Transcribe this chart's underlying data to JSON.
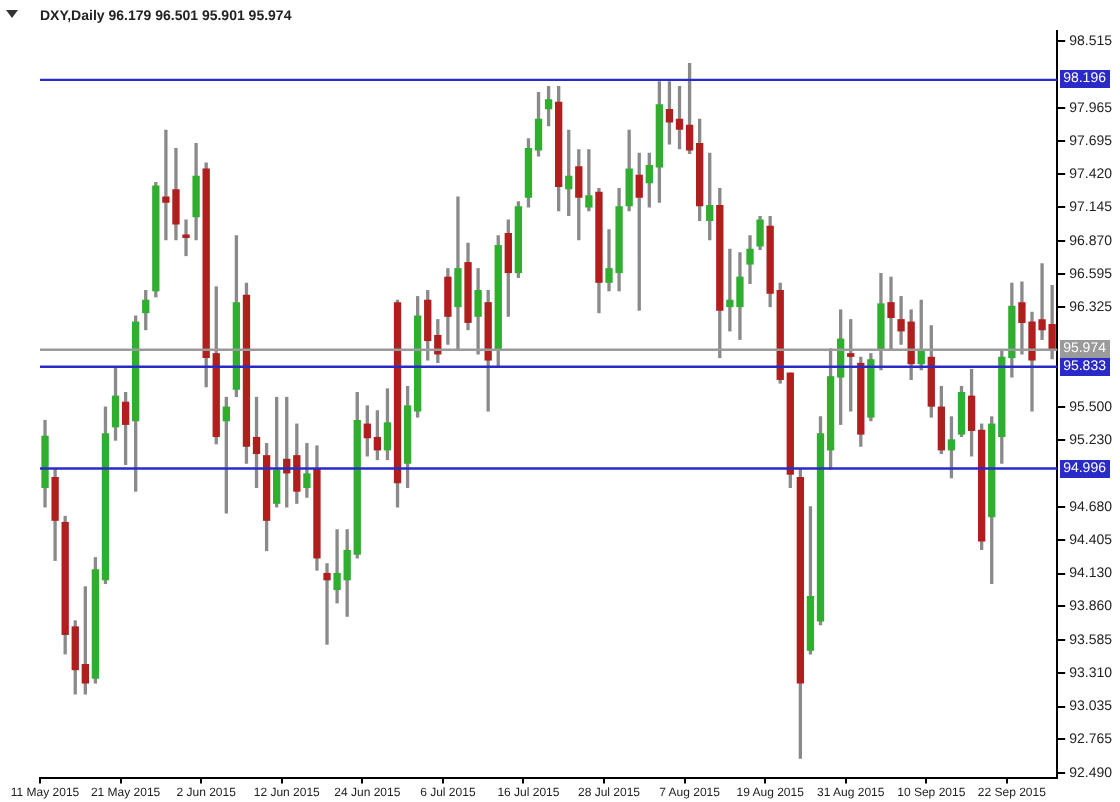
{
  "chart_data": {
    "type": "candlestick",
    "title": "DXY,Daily 96.179 96.501 95.901 95.974",
    "categories": [
      "11 May 2015",
      null,
      null,
      null,
      null,
      null,
      null,
      null,
      "21 May 2015",
      null,
      null,
      null,
      null,
      null,
      null,
      null,
      "2 Jun 2015",
      null,
      null,
      null,
      null,
      null,
      null,
      null,
      "12 Jun 2015",
      null,
      null,
      null,
      null,
      null,
      null,
      null,
      "24 Jun 2015",
      null,
      null,
      null,
      null,
      null,
      null,
      null,
      "6 Jul 2015",
      null,
      null,
      null,
      null,
      null,
      null,
      null,
      "16 Jul 2015",
      null,
      null,
      null,
      null,
      null,
      null,
      null,
      "28 Jul 2015",
      null,
      null,
      null,
      null,
      null,
      null,
      null,
      "7 Aug 2015",
      null,
      null,
      null,
      null,
      null,
      null,
      null,
      "19 Aug 2015",
      null,
      null,
      null,
      null,
      null,
      null,
      null,
      "31 Aug 2015",
      null,
      null,
      null,
      null,
      null,
      null,
      null,
      "10 Sep 2015",
      null,
      null,
      null,
      null,
      null,
      null,
      null,
      "22 Sep 2015",
      null,
      null,
      null,
      null
    ],
    "ohlc": [
      [
        94.84,
        95.39,
        94.68,
        95.26
      ],
      [
        94.92,
        94.99,
        94.24,
        94.57
      ],
      [
        94.55,
        94.6,
        93.47,
        93.63
      ],
      [
        93.69,
        93.74,
        93.14,
        93.34
      ],
      [
        93.38,
        94.02,
        93.14,
        93.23
      ],
      [
        93.27,
        94.26,
        93.23,
        94.16
      ],
      [
        94.08,
        95.5,
        94.05,
        95.28
      ],
      [
        95.34,
        95.83,
        95.23,
        95.59
      ],
      [
        95.54,
        95.62,
        95.03,
        95.36
      ],
      [
        95.39,
        96.25,
        94.81,
        96.2
      ],
      [
        96.28,
        96.46,
        96.14,
        96.38
      ],
      [
        96.46,
        97.35,
        96.41,
        97.32
      ],
      [
        97.23,
        97.78,
        96.88,
        97.19
      ],
      [
        97.29,
        97.63,
        96.88,
        97.01
      ],
      [
        96.91,
        97.04,
        96.75,
        96.9
      ],
      [
        97.07,
        97.67,
        96.88,
        97.4
      ],
      [
        97.46,
        97.51,
        95.67,
        95.91
      ],
      [
        95.94,
        96.49,
        95.2,
        95.26
      ],
      [
        95.39,
        95.58,
        94.63,
        95.5
      ],
      [
        95.65,
        96.91,
        95.59,
        96.36
      ],
      [
        96.42,
        96.52,
        95.04,
        95.18
      ],
      [
        95.25,
        95.58,
        94.84,
        95.12
      ],
      [
        95.1,
        95.2,
        94.32,
        94.57
      ],
      [
        94.71,
        95.58,
        94.68,
        94.98
      ],
      [
        95.07,
        95.58,
        94.68,
        94.96
      ],
      [
        95.1,
        95.36,
        94.71,
        94.81
      ],
      [
        94.84,
        95.2,
        94.76,
        94.95
      ],
      [
        94.99,
        95.18,
        94.16,
        94.26
      ],
      [
        94.13,
        94.21,
        93.55,
        94.08
      ],
      [
        94.0,
        94.49,
        93.89,
        94.13
      ],
      [
        94.08,
        94.49,
        93.78,
        94.32
      ],
      [
        94.29,
        95.62,
        94.26,
        95.39
      ],
      [
        95.36,
        95.51,
        95.1,
        95.25
      ],
      [
        95.25,
        95.47,
        95.07,
        95.15
      ],
      [
        95.15,
        95.65,
        95.07,
        95.37
      ],
      [
        96.36,
        96.38,
        94.68,
        94.88
      ],
      [
        95.04,
        95.67,
        94.84,
        95.51
      ],
      [
        95.47,
        96.41,
        95.42,
        96.25
      ],
      [
        96.38,
        96.46,
        95.89,
        96.05
      ],
      [
        96.09,
        96.22,
        95.87,
        95.94
      ],
      [
        96.57,
        96.64,
        96.02,
        96.25
      ],
      [
        96.33,
        97.23,
        95.97,
        96.64
      ],
      [
        96.69,
        96.85,
        96.14,
        96.2
      ],
      [
        96.25,
        96.64,
        95.94,
        96.46
      ],
      [
        96.36,
        96.46,
        95.47,
        95.89
      ],
      [
        95.97,
        96.91,
        95.83,
        96.83
      ],
      [
        96.93,
        97.04,
        96.25,
        96.61
      ],
      [
        96.61,
        97.19,
        96.57,
        97.15
      ],
      [
        97.23,
        97.71,
        97.15,
        97.63
      ],
      [
        97.62,
        98.09,
        97.57,
        97.87
      ],
      [
        97.96,
        98.14,
        97.82,
        98.03
      ],
      [
        98.01,
        98.14,
        97.12,
        97.32
      ],
      [
        97.3,
        97.78,
        97.08,
        97.4
      ],
      [
        97.48,
        97.62,
        96.88,
        97.23
      ],
      [
        97.15,
        97.62,
        97.12,
        97.24
      ],
      [
        97.27,
        97.3,
        96.28,
        96.53
      ],
      [
        96.53,
        96.96,
        96.46,
        96.64
      ],
      [
        96.61,
        97.3,
        96.46,
        97.15
      ],
      [
        97.16,
        97.78,
        97.12,
        97.46
      ],
      [
        97.41,
        97.59,
        96.3,
        97.23
      ],
      [
        97.35,
        97.59,
        97.15,
        97.49
      ],
      [
        97.48,
        98.18,
        97.19,
        97.99
      ],
      [
        97.95,
        98.18,
        97.67,
        97.85
      ],
      [
        97.87,
        98.14,
        97.63,
        97.79
      ],
      [
        97.82,
        98.33,
        97.59,
        97.62
      ],
      [
        97.67,
        97.87,
        97.04,
        97.16
      ],
      [
        97.04,
        97.59,
        96.88,
        97.16
      ],
      [
        97.16,
        97.3,
        95.91,
        96.3
      ],
      [
        96.33,
        96.8,
        96.13,
        96.38
      ],
      [
        96.33,
        96.77,
        96.06,
        96.57
      ],
      [
        96.68,
        96.91,
        96.52,
        96.8
      ],
      [
        96.83,
        97.07,
        96.8,
        97.04
      ],
      [
        96.99,
        97.07,
        96.33,
        96.44
      ],
      [
        96.46,
        96.52,
        95.7,
        95.73
      ],
      [
        95.78,
        95.78,
        94.84,
        94.95
      ],
      [
        94.92,
        94.99,
        92.61,
        93.23
      ],
      [
        93.5,
        94.68,
        93.47,
        93.94
      ],
      [
        93.74,
        95.42,
        93.71,
        95.28
      ],
      [
        95.15,
        95.98,
        94.99,
        95.75
      ],
      [
        95.75,
        96.3,
        95.36,
        96.06
      ],
      [
        95.94,
        96.22,
        95.47,
        95.92
      ],
      [
        95.86,
        95.91,
        95.18,
        95.28
      ],
      [
        95.42,
        95.94,
        95.39,
        95.89
      ],
      [
        95.98,
        96.6,
        95.81,
        96.35
      ],
      [
        96.36,
        96.57,
        95.98,
        96.24
      ],
      [
        96.22,
        96.41,
        96.02,
        96.13
      ],
      [
        96.2,
        96.3,
        95.73,
        95.86
      ],
      [
        95.86,
        96.38,
        95.81,
        95.97
      ],
      [
        95.91,
        96.17,
        95.42,
        95.51
      ],
      [
        95.5,
        95.67,
        95.12,
        95.15
      ],
      [
        95.15,
        95.42,
        94.92,
        95.23
      ],
      [
        95.28,
        95.67,
        95.26,
        95.62
      ],
      [
        95.59,
        95.81,
        95.1,
        95.31
      ],
      [
        95.31,
        95.36,
        94.33,
        94.4
      ],
      [
        94.6,
        95.42,
        94.05,
        95.36
      ],
      [
        95.26,
        95.97,
        95.04,
        95.91
      ],
      [
        95.91,
        96.52,
        95.75,
        96.33
      ],
      [
        96.36,
        96.53,
        95.94,
        96.2
      ],
      [
        96.2,
        96.28,
        95.47,
        95.89
      ],
      [
        96.22,
        96.68,
        96.06,
        96.14
      ],
      [
        96.179,
        96.501,
        95.901,
        95.974
      ]
    ],
    "colors": [
      "#2fae2f",
      "#b01e1e",
      "#b01e1e",
      "#b01e1e",
      "#b01e1e",
      "#2fae2f",
      "#2fae2f",
      "#2fae2f",
      "#b01e1e",
      "#2fae2f",
      "#2fae2f",
      "#2fae2f",
      "#b01e1e",
      "#b01e1e",
      "#b01e1e",
      "#2fae2f",
      "#b01e1e",
      "#b01e1e",
      "#2fae2f",
      "#2fae2f",
      "#b01e1e",
      "#b01e1e",
      "#b01e1e",
      "#2fae2f",
      "#b01e1e",
      "#b01e1e",
      "#2fae2f",
      "#b01e1e",
      "#b01e1e",
      "#2fae2f",
      "#2fae2f",
      "#2fae2f",
      "#b01e1e",
      "#b01e1e",
      "#2fae2f",
      "#b01e1e",
      "#2fae2f",
      "#2fae2f",
      "#b01e1e",
      "#b01e1e",
      "#b01e1e",
      "#2fae2f",
      "#b01e1e",
      "#2fae2f",
      "#b01e1e",
      "#2fae2f",
      "#b01e1e",
      "#2fae2f",
      "#2fae2f",
      "#2fae2f",
      "#2fae2f",
      "#b01e1e",
      "#2fae2f",
      "#b01e1e",
      "#2fae2f",
      "#b01e1e",
      "#2fae2f",
      "#2fae2f",
      "#2fae2f",
      "#b01e1e",
      "#2fae2f",
      "#2fae2f",
      "#b01e1e",
      "#b01e1e",
      "#b01e1e",
      "#b01e1e",
      "#2fae2f",
      "#b01e1e",
      "#2fae2f",
      "#2fae2f",
      "#2fae2f",
      "#2fae2f",
      "#b01e1e",
      "#b01e1e",
      "#b01e1e",
      "#b01e1e",
      "#2fae2f",
      "#2fae2f",
      "#2fae2f",
      "#2fae2f",
      "#b01e1e",
      "#b01e1e",
      "#2fae2f",
      "#2fae2f",
      "#b01e1e",
      "#b01e1e",
      "#b01e1e",
      "#2fae2f",
      "#b01e1e",
      "#b01e1e",
      "#2fae2f",
      "#2fae2f",
      "#b01e1e",
      "#b01e1e",
      "#2fae2f",
      "#2fae2f",
      "#2fae2f",
      "#b01e1e",
      "#b01e1e",
      "#b01e1e",
      "#b01e1e"
    ],
    "ylim": [
      92.45,
      98.6
    ],
    "yticks": [
      {
        "value": 98.515,
        "label": "98.515"
      },
      {
        "value": 97.965,
        "label": "97.965"
      },
      {
        "value": 97.695,
        "label": "97.695"
      },
      {
        "value": 97.42,
        "label": "97.420"
      },
      {
        "value": 97.145,
        "label": "97.145"
      },
      {
        "value": 96.87,
        "label": "96.870"
      },
      {
        "value": 96.595,
        "label": "96.595"
      },
      {
        "value": 96.325,
        "label": "96.325"
      },
      {
        "value": 95.5,
        "label": "95.500"
      },
      {
        "value": 95.23,
        "label": "95.230"
      },
      {
        "value": 94.68,
        "label": "94.680"
      },
      {
        "value": 94.405,
        "label": "94.405"
      },
      {
        "value": 94.13,
        "label": "94.130"
      },
      {
        "value": 93.86,
        "label": "93.860"
      },
      {
        "value": 93.585,
        "label": "93.585"
      },
      {
        "value": 93.31,
        "label": "93.310"
      },
      {
        "value": 93.035,
        "label": "93.035"
      },
      {
        "value": 92.765,
        "label": "92.765"
      },
      {
        "value": 92.49,
        "label": "92.490"
      }
    ],
    "ref_lines": [
      {
        "axis": "y",
        "value": 98.196,
        "label": "98.196",
        "color": "#2a2ac8"
      },
      {
        "axis": "y",
        "value": 95.833,
        "label": "95.833",
        "color": "#2a2ac8"
      },
      {
        "axis": "y",
        "value": 94.996,
        "label": "94.996",
        "color": "#2a2ac8"
      },
      {
        "axis": "y",
        "value": 95.974,
        "label": "95.974",
        "color": "#9a9a9a"
      }
    ],
    "grid": false,
    "legend": false
  }
}
